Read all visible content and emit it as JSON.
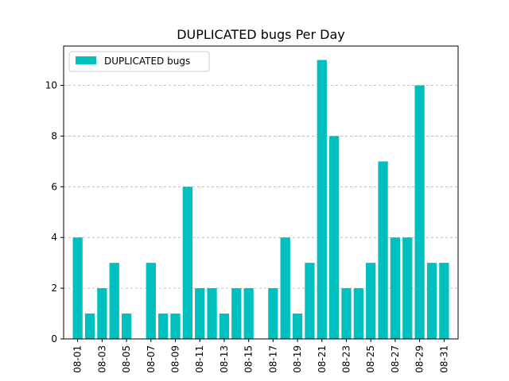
{
  "chart_data": {
    "type": "bar",
    "title": "DUPLICATED bugs Per Day",
    "xlabel": "",
    "ylabel": "",
    "categories": [
      "08-01",
      "08-02",
      "08-03",
      "08-04",
      "08-05",
      "08-06",
      "08-07",
      "08-08",
      "08-09",
      "08-10",
      "08-11",
      "08-12",
      "08-13",
      "08-14",
      "08-15",
      "08-16",
      "08-17",
      "08-18",
      "08-19",
      "08-20",
      "08-21",
      "08-22",
      "08-23",
      "08-24",
      "08-25",
      "08-26",
      "08-27",
      "08-28",
      "08-29",
      "08-30",
      "08-31"
    ],
    "tick_labels": [
      "08-01",
      "08-03",
      "08-05",
      "08-07",
      "08-09",
      "08-11",
      "08-13",
      "08-15",
      "08-17",
      "08-19",
      "08-21",
      "08-23",
      "08-25",
      "08-27",
      "08-29",
      "08-31"
    ],
    "series": [
      {
        "name": "DUPLICATED bugs",
        "color": "#00bfbf",
        "values": [
          4,
          1,
          2,
          3,
          1,
          0,
          3,
          1,
          1,
          6,
          2,
          2,
          1,
          2,
          2,
          0,
          2,
          4,
          1,
          3,
          11,
          8,
          2,
          2,
          3,
          7,
          4,
          4,
          10,
          3,
          3
        ]
      }
    ],
    "ylim": [
      0,
      11.55
    ],
    "yticks": [
      0,
      2,
      4,
      6,
      8,
      10
    ],
    "grid": "y-dashed",
    "legend_position": "upper-left"
  }
}
